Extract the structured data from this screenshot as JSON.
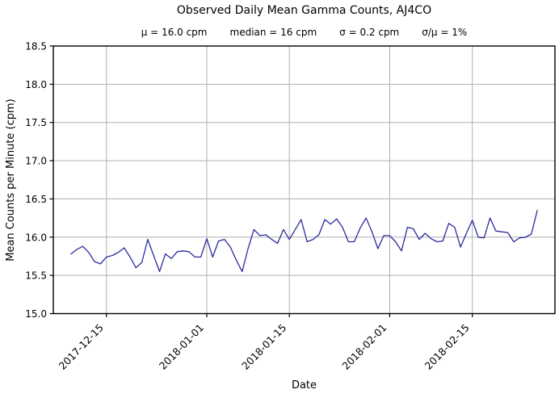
{
  "chart_data": {
    "type": "line",
    "title": "Observed Daily Mean Gamma Counts, AJ4CO",
    "subtitle_parts": [
      "μ = 16.0 cpm",
      "median = 16 cpm",
      "σ = 0.2 cpm",
      "σ/μ = 1%"
    ],
    "xlabel": "Date",
    "ylabel": "Mean Counts per Minute (cpm)",
    "ylim": [
      15.0,
      18.5
    ],
    "y_ticks": [
      15.0,
      15.5,
      16.0,
      16.5,
      17.0,
      17.5,
      18.0,
      18.5
    ],
    "x_ticks": [
      "2017-12-15",
      "2018-01-01",
      "2018-01-15",
      "2018-02-01",
      "2018-02-15"
    ],
    "x_domain": [
      "2017-12-06",
      "2018-03-01"
    ],
    "grid": true,
    "grid_color": "#b0b0b0",
    "line_color": "#2b2b9d",
    "x": [
      "2017-12-09",
      "2017-12-10",
      "2017-12-11",
      "2017-12-12",
      "2017-12-13",
      "2017-12-14",
      "2017-12-15",
      "2017-12-16",
      "2017-12-17",
      "2017-12-18",
      "2017-12-19",
      "2017-12-20",
      "2017-12-21",
      "2017-12-22",
      "2017-12-23",
      "2017-12-24",
      "2017-12-25",
      "2017-12-26",
      "2017-12-27",
      "2017-12-28",
      "2017-12-29",
      "2017-12-30",
      "2017-12-31",
      "2018-01-01",
      "2018-01-02",
      "2018-01-03",
      "2018-01-04",
      "2018-01-05",
      "2018-01-06",
      "2018-01-07",
      "2018-01-08",
      "2018-01-09",
      "2018-01-10",
      "2018-01-11",
      "2018-01-12",
      "2018-01-13",
      "2018-01-14",
      "2018-01-15",
      "2018-01-16",
      "2018-01-17",
      "2018-01-18",
      "2018-01-19",
      "2018-01-20",
      "2018-01-21",
      "2018-01-22",
      "2018-01-23",
      "2018-01-24",
      "2018-01-25",
      "2018-01-26",
      "2018-01-27",
      "2018-01-28",
      "2018-01-29",
      "2018-01-30",
      "2018-01-31",
      "2018-02-01",
      "2018-02-02",
      "2018-02-03",
      "2018-02-04",
      "2018-02-05",
      "2018-02-06",
      "2018-02-07",
      "2018-02-08",
      "2018-02-09",
      "2018-02-10",
      "2018-02-11",
      "2018-02-12",
      "2018-02-13",
      "2018-02-14",
      "2018-02-15",
      "2018-02-16",
      "2018-02-17",
      "2018-02-18",
      "2018-02-19",
      "2018-02-20",
      "2018-02-21",
      "2018-02-22",
      "2018-02-23",
      "2018-02-24",
      "2018-02-25",
      "2018-02-26"
    ],
    "y": [
      15.78,
      15.84,
      15.88,
      15.8,
      15.68,
      15.65,
      15.74,
      15.76,
      15.8,
      15.86,
      15.74,
      15.6,
      15.67,
      15.97,
      15.76,
      15.55,
      15.78,
      15.72,
      15.81,
      15.82,
      15.81,
      15.74,
      15.74,
      15.98,
      15.74,
      15.95,
      15.97,
      15.87,
      15.7,
      15.55,
      15.85,
      16.1,
      16.02,
      16.03,
      15.97,
      15.92,
      16.1,
      15.97,
      16.1,
      16.23,
      15.94,
      15.97,
      16.03,
      16.23,
      16.17,
      16.24,
      16.13,
      15.94,
      15.94,
      16.12,
      16.25,
      16.07,
      15.85,
      16.02,
      16.02,
      15.94,
      15.82,
      16.13,
      16.11,
      15.97,
      16.05,
      15.98,
      15.94,
      15.95,
      16.18,
      16.13,
      15.87,
      16.05,
      16.22,
      16.0,
      15.99,
      16.25,
      16.08,
      16.07,
      16.06,
      15.94,
      15.99,
      16.0,
      16.04,
      16.35
    ]
  }
}
